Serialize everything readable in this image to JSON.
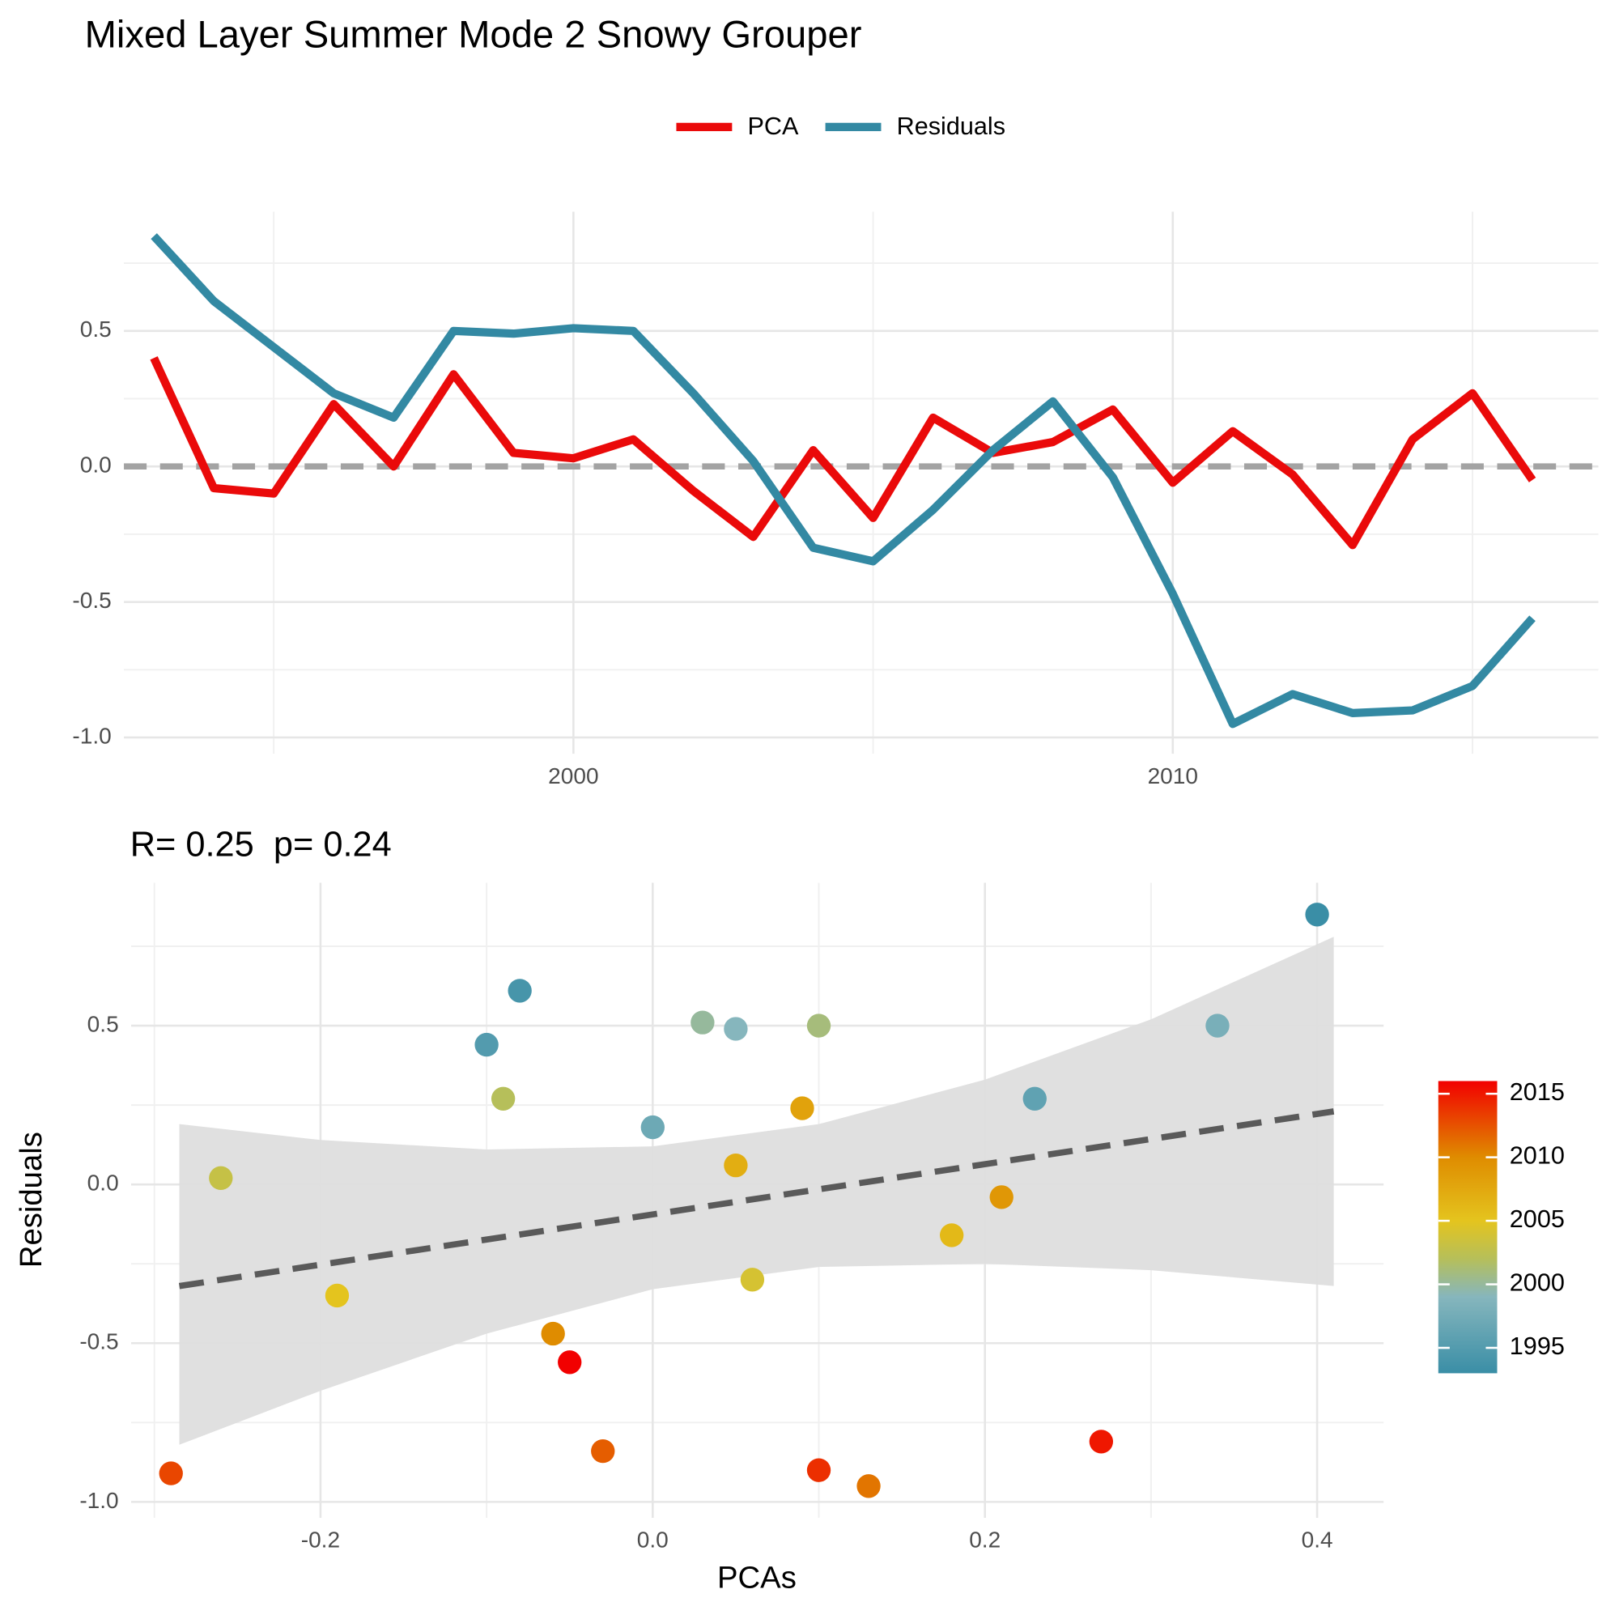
{
  "chart_data": [
    {
      "type": "line",
      "title": "Mixed Layer Summer Mode 2 Snowy Grouper",
      "x": [
        1993,
        1994,
        1995,
        1996,
        1997,
        1998,
        1999,
        2000,
        2001,
        2002,
        2003,
        2004,
        2005,
        2006,
        2007,
        2008,
        2009,
        2010,
        2011,
        2012,
        2013,
        2014,
        2015,
        2016
      ],
      "series": [
        {
          "name": "PCA",
          "color": "#ea0a0a",
          "values": [
            0.4,
            -0.08,
            -0.1,
            0.23,
            0.0,
            0.34,
            0.05,
            0.03,
            0.1,
            -0.09,
            -0.26,
            0.06,
            -0.19,
            0.18,
            0.05,
            0.09,
            0.21,
            -0.06,
            0.13,
            -0.03,
            -0.29,
            0.1,
            0.27,
            -0.05
          ]
        },
        {
          "name": "Residuals",
          "color": "#3389a3",
          "values": [
            0.85,
            0.61,
            0.44,
            0.27,
            0.18,
            0.5,
            0.49,
            0.51,
            0.5,
            0.27,
            0.02,
            -0.3,
            -0.35,
            -0.16,
            0.06,
            0.24,
            -0.04,
            -0.47,
            -0.95,
            -0.84,
            -0.91,
            -0.9,
            -0.81,
            -0.56
          ]
        }
      ],
      "xlim": [
        1992.5,
        2017.1
      ],
      "xticks": [
        2000,
        2010
      ],
      "ylim": [
        -1.06,
        0.94
      ],
      "yticks": [
        {
          "value": -1,
          "label": "-1.0"
        },
        -0.5,
        {
          "value": 0,
          "label": "0.0"
        },
        0.5
      ],
      "hline": 0,
      "grid": true,
      "legend": "top"
    },
    {
      "type": "scatter",
      "title": "R= 0.25  p= 0.24",
      "x_label": "PCAs",
      "y_label": "Residuals",
      "x": [
        0.4,
        -0.08,
        -0.1,
        0.23,
        0.0,
        0.34,
        0.05,
        0.03,
        0.1,
        -0.09,
        -0.26,
        0.06,
        -0.19,
        0.18,
        0.05,
        0.09,
        0.21,
        -0.06,
        0.13,
        -0.03,
        -0.29,
        0.1,
        0.27,
        -0.05
      ],
      "values": [
        0.85,
        0.61,
        0.44,
        0.27,
        0.18,
        0.5,
        0.49,
        0.51,
        0.5,
        0.27,
        0.02,
        -0.3,
        -0.35,
        -0.16,
        0.06,
        0.24,
        -0.04,
        -0.47,
        -0.95,
        -0.84,
        -0.91,
        -0.9,
        -0.81,
        -0.56
      ],
      "color_values": [
        1993,
        1994,
        1995,
        1996,
        1997,
        1998,
        1999,
        2000,
        2001,
        2002,
        2003,
        2004,
        2005,
        2006,
        2007,
        2008,
        2009,
        2010,
        2011,
        2012,
        2013,
        2014,
        2015,
        2016
      ],
      "colorscale": [
        [
          1993,
          "#3a8ea6"
        ],
        [
          1999,
          "#86b6bd"
        ],
        [
          2002,
          "#b6bf5a"
        ],
        [
          2005,
          "#e4c41e"
        ],
        [
          2010,
          "#df8c00"
        ],
        [
          2016,
          "#f20000"
        ]
      ],
      "colorbar": {
        "lim": [
          1993,
          2016
        ],
        "ticks": [
          1995,
          2000,
          2005,
          2010,
          2015
        ]
      },
      "fit": {
        "x": [
          -0.285,
          0.41
        ],
        "y": [
          -0.32,
          0.23
        ],
        "color": "#5a5a5a"
      },
      "band": {
        "x": [
          -0.285,
          -0.2,
          -0.1,
          0,
          0.1,
          0.2,
          0.3,
          0.41
        ],
        "lower": [
          -0.82,
          -0.65,
          -0.47,
          -0.33,
          -0.26,
          -0.25,
          -0.27,
          -0.32
        ],
        "upper": [
          0.19,
          0.14,
          0.11,
          0.12,
          0.19,
          0.33,
          0.52,
          0.78
        ],
        "color": "#dedede"
      },
      "xlim": [
        -0.314,
        0.44
      ],
      "xticks": [
        -0.2,
        {
          "value": 0,
          "label": "0.0"
        },
        0.2,
        0.4
      ],
      "ylim": [
        -1.05,
        0.95
      ],
      "yticks": [
        {
          "value": -1,
          "label": "-1.0"
        },
        -0.5,
        {
          "value": 0,
          "label": "0.0"
        },
        0.5
      ],
      "grid": true
    }
  ]
}
